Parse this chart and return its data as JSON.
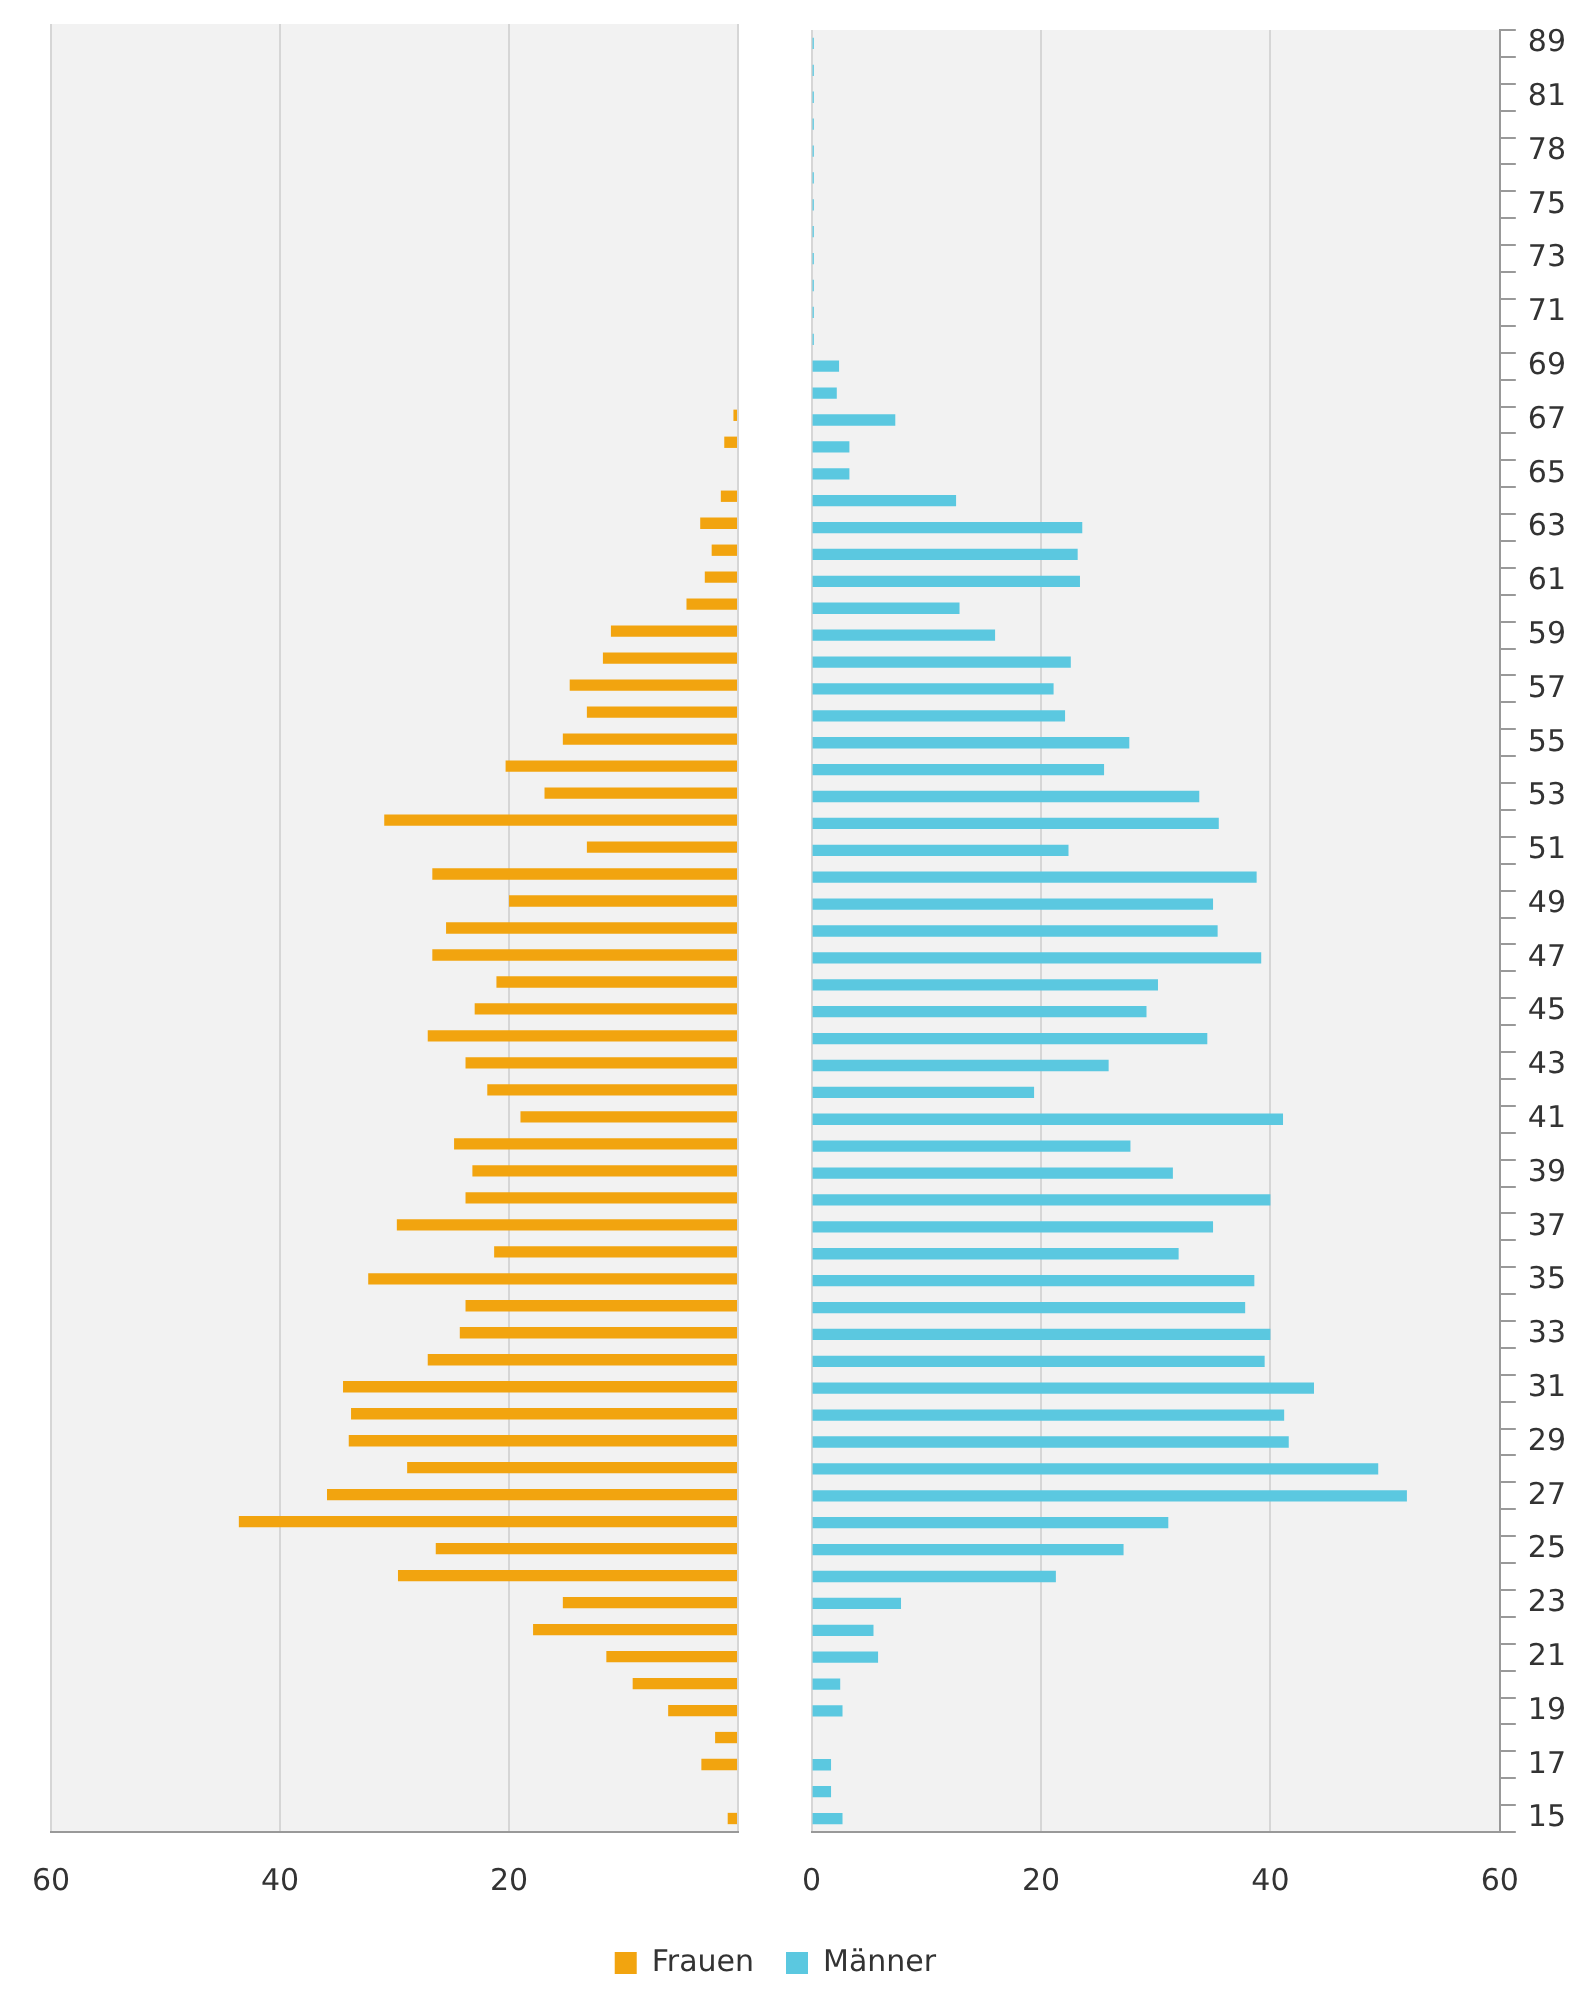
{
  "chart_data": [
    {
      "type": "bar",
      "orientation": "horizontal",
      "grid": "x",
      "legend": "bottom",
      "tick_labels": "x",
      "categories": [
        "89",
        null,
        "81",
        null,
        "78",
        null,
        "75",
        null,
        "73",
        null,
        "71",
        null,
        "69",
        null,
        "67",
        null,
        "65",
        null,
        "63",
        null,
        "61",
        null,
        "59",
        null,
        "57",
        null,
        "55",
        null,
        "53",
        null,
        "51",
        null,
        "49",
        null,
        "47",
        null,
        "45",
        null,
        "43",
        null,
        "41",
        null,
        "39",
        null,
        "37",
        null,
        "35",
        null,
        "33",
        null,
        "31",
        null,
        "29",
        null,
        "27",
        null,
        "25",
        null,
        "23",
        null,
        "21",
        null,
        "19",
        null,
        "17",
        null,
        "15"
      ],
      "xlim": [
        60,
        0
      ],
      "xticks": [
        60,
        40,
        20,
        {
          "value": 0,
          "label": null
        }
      ],
      "series": [
        {
          "name": "Frauen",
          "color": "#f2a40f",
          "values": [
            0,
            0,
            0,
            0,
            0,
            0,
            0,
            0,
            0,
            0,
            0,
            0,
            0,
            0,
            0.4,
            1.2,
            0,
            1.5,
            3.3,
            2.3,
            2.9,
            4.5,
            11.1,
            11.8,
            14.7,
            13.2,
            15.3,
            20.3,
            16.9,
            30.9,
            13.2,
            26.7,
            20,
            25.5,
            26.7,
            21.1,
            23,
            27.1,
            23.8,
            21.9,
            19,
            24.8,
            23.2,
            23.8,
            29.8,
            21.3,
            32.3,
            23.8,
            24.3,
            27.1,
            34.5,
            33.8,
            34,
            28.9,
            35.9,
            43.6,
            26.4,
            29.7,
            15.3,
            17.9,
            11.5,
            9.2,
            6.1,
            2,
            3.2,
            0,
            0.9
          ]
        }
      ]
    },
    {
      "type": "bar",
      "orientation": "horizontal",
      "grid": "x",
      "legend": "bottom",
      "categories": [
        "89",
        null,
        "81",
        null,
        "78",
        null,
        "75",
        null,
        "73",
        null,
        "71",
        null,
        "69",
        null,
        "67",
        null,
        "65",
        null,
        "63",
        null,
        "61",
        null,
        "59",
        null,
        "57",
        null,
        "55",
        null,
        "53",
        null,
        "51",
        null,
        "49",
        null,
        "47",
        null,
        "45",
        null,
        "43",
        null,
        "41",
        null,
        "39",
        null,
        "37",
        null,
        "35",
        null,
        "33",
        null,
        "31",
        null,
        "29",
        null,
        "27",
        null,
        "25",
        null,
        "23",
        null,
        "21",
        null,
        "19",
        null,
        "17",
        null,
        "15"
      ],
      "xlim": [
        0,
        60
      ],
      "xticks": [
        0,
        20,
        40,
        60
      ],
      "series": [
        {
          "name": "Männer",
          "color": "#5bc8e0",
          "values": [
            0.2,
            0.2,
            0.2,
            0.2,
            0.2,
            0.2,
            0.2,
            0.2,
            0.2,
            0.2,
            0.2,
            0.2,
            2.4,
            2.2,
            7.3,
            3.3,
            3.3,
            12.6,
            23.6,
            23.2,
            23.4,
            12.9,
            16,
            22.6,
            21.1,
            22.1,
            27.7,
            25.5,
            33.8,
            35.5,
            22.4,
            38.8,
            35,
            35.4,
            39.2,
            30.2,
            29.2,
            34.5,
            25.9,
            19.4,
            41.1,
            27.8,
            31.5,
            40,
            35,
            32,
            38.6,
            37.8,
            40,
            39.5,
            43.8,
            41.2,
            41.6,
            49.4,
            51.9,
            31.1,
            27.2,
            21.3,
            7.8,
            5.4,
            5.8,
            2.5,
            2.7,
            0,
            1.7,
            1.7,
            2.7
          ]
        }
      ]
    }
  ]
}
